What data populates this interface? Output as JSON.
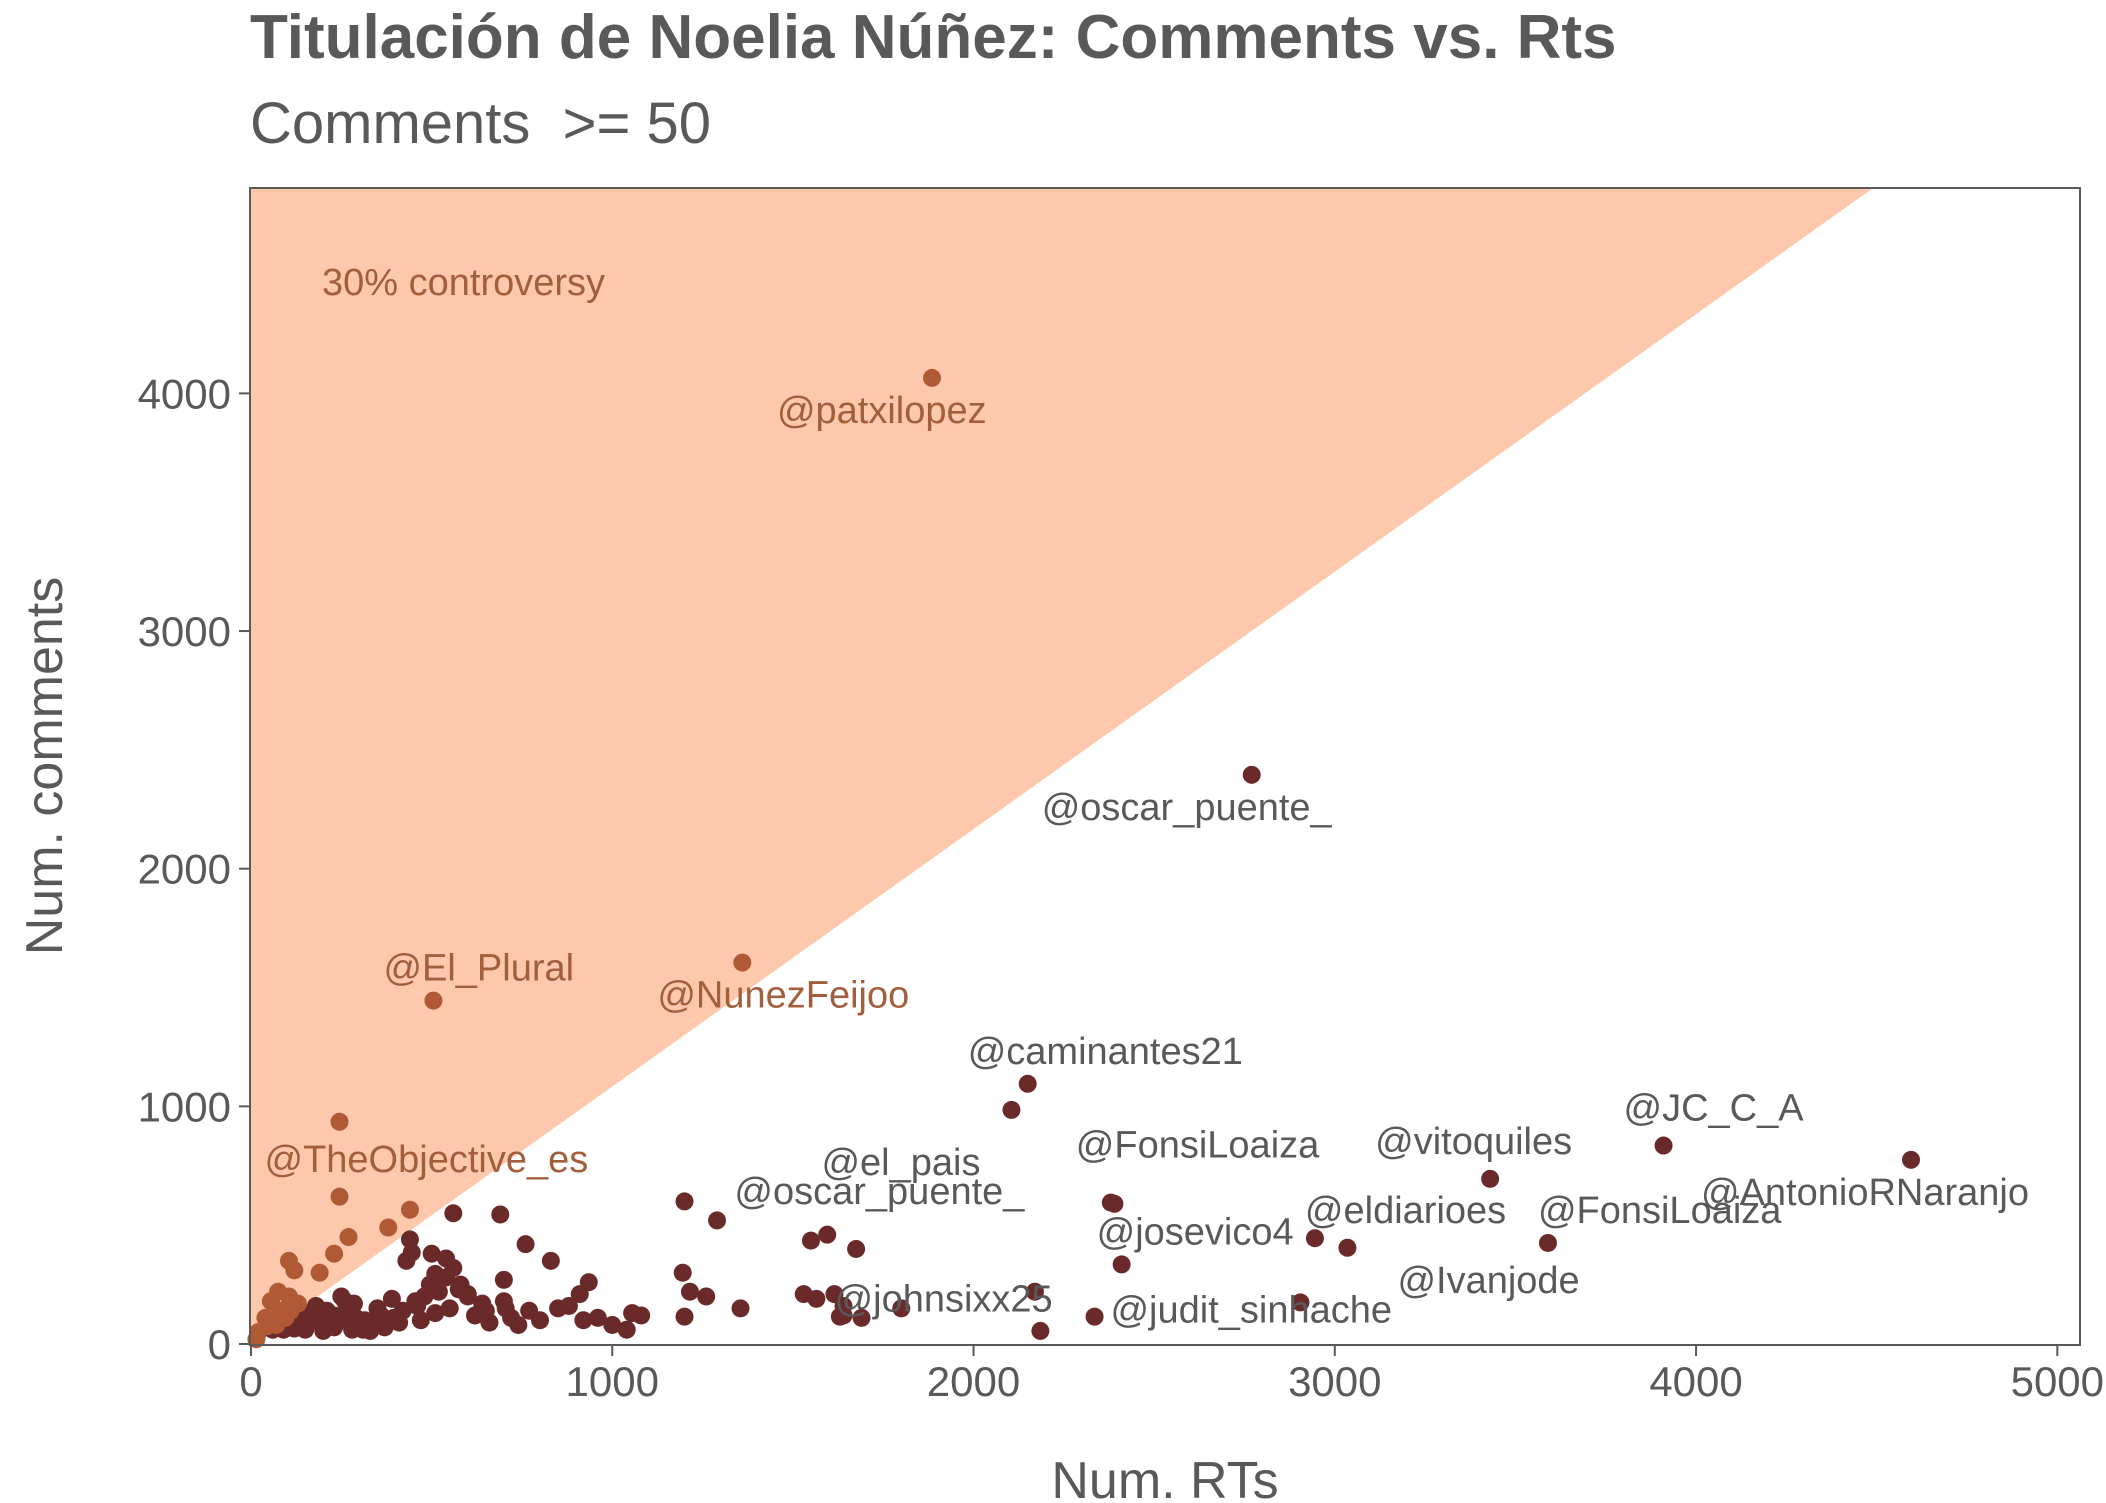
{
  "colors": {
    "band": "#fdc8ab",
    "point_controversial": "#b05a35",
    "point_normal": "#6b2a2a",
    "label_controversial": "#a35f3c",
    "label_normal": "#595959",
    "band_text": "#a35f3c"
  },
  "chart_data": {
    "type": "scatter",
    "title": "Titulación de Noelia Núñez: Comments vs. Rts",
    "subtitle": "Comments  >= 50",
    "xlabel": "Num. RTs",
    "ylabel": "Num. comments",
    "xlim": [
      0,
      5060
    ],
    "ylim": [
      0,
      4860
    ],
    "xticks": [
      0,
      1000,
      2000,
      3000,
      4000,
      5000
    ],
    "yticks": [
      0,
      1000,
      2000,
      3000,
      4000
    ],
    "grid": false,
    "band": {
      "label": "30% controversy",
      "slope": 1.0833
    },
    "labeled_points": [
      {
        "label": "@patxilopez",
        "x": 1885,
        "y": 4065,
        "controversial": true
      },
      {
        "label": "@oscar_puente_",
        "x": 2770,
        "y": 2395,
        "controversial": false
      },
      {
        "label": "@El_Plural",
        "x": 505,
        "y": 1445,
        "controversial": true
      },
      {
        "label": "@NunezFeijoo",
        "x": 1360,
        "y": 1605,
        "controversial": true
      },
      {
        "label": "@caminantes21",
        "x": 2150,
        "y": 1095,
        "controversial": false
      },
      {
        "label": "@el_pais",
        "x": 2105,
        "y": 985,
        "controversial": false
      },
      {
        "label": "@TheObjective_es",
        "x": 245,
        "y": 935,
        "controversial": true
      },
      {
        "label": "@JC_C_A",
        "x": 3910,
        "y": 835,
        "controversial": false
      },
      {
        "label": "@AntonioRNaranjo",
        "x": 4595,
        "y": 775,
        "controversial": false
      },
      {
        "label": "@vitoquiles",
        "x": 3430,
        "y": 695,
        "controversial": false
      },
      {
        "label": "@FonsiLoaiza",
        "x": 2380,
        "y": 595,
        "controversial": false
      },
      {
        "label": "@oscar_puente_",
        "x": 2390,
        "y": 590,
        "controversial": false
      },
      {
        "label": "@eldiarioes",
        "x": 2945,
        "y": 445,
        "controversial": false
      },
      {
        "label": "@FonsiLoaiza",
        "x": 3590,
        "y": 425,
        "controversial": false
      },
      {
        "label": "@Ivanjode",
        "x": 3035,
        "y": 405,
        "controversial": false
      },
      {
        "label": "@josevico4",
        "x": 2410,
        "y": 335,
        "controversial": false
      },
      {
        "label": "@judit_sinhache",
        "x": 2905,
        "y": 175,
        "controversial": false
      },
      {
        "label": "@johnsixx25",
        "x": 2335,
        "y": 115,
        "controversial": false
      }
    ],
    "points": [
      [
        245,
        620
      ],
      [
        440,
        565
      ],
      [
        380,
        490
      ],
      [
        270,
        450
      ],
      [
        440,
        440
      ],
      [
        230,
        380
      ],
      [
        105,
        350
      ],
      [
        120,
        310
      ],
      [
        190,
        300
      ],
      [
        75,
        220
      ],
      [
        55,
        180
      ],
      [
        105,
        200
      ],
      [
        140,
        120
      ],
      [
        170,
        100
      ],
      [
        210,
        140
      ],
      [
        260,
        180
      ],
      [
        60,
        90
      ],
      [
        90,
        60
      ],
      [
        130,
        80
      ],
      [
        20,
        50
      ],
      [
        40,
        110
      ],
      [
        150,
        60
      ],
      [
        230,
        70
      ],
      [
        560,
        550
      ],
      [
        690,
        545
      ],
      [
        1200,
        600
      ],
      [
        1290,
        520
      ],
      [
        1550,
        435
      ],
      [
        1595,
        460
      ],
      [
        1675,
        400
      ],
      [
        445,
        385
      ],
      [
        500,
        380
      ],
      [
        540,
        360
      ],
      [
        430,
        350
      ],
      [
        760,
        420
      ],
      [
        830,
        350
      ],
      [
        935,
        260
      ],
      [
        910,
        210
      ],
      [
        1195,
        300
      ],
      [
        1215,
        220
      ],
      [
        1260,
        200
      ],
      [
        1355,
        150
      ],
      [
        1530,
        210
      ],
      [
        1565,
        190
      ],
      [
        1615,
        210
      ],
      [
        1640,
        160
      ],
      [
        1640,
        120
      ],
      [
        1690,
        110
      ],
      [
        1800,
        150
      ],
      [
        2170,
        220
      ],
      [
        2185,
        55
      ],
      [
        1040,
        60
      ],
      [
        1055,
        130
      ],
      [
        1080,
        120
      ],
      [
        920,
        100
      ],
      [
        850,
        150
      ],
      [
        770,
        140
      ],
      [
        700,
        180
      ],
      [
        720,
        110
      ],
      [
        640,
        170
      ],
      [
        600,
        210
      ],
      [
        580,
        250
      ],
      [
        540,
        280
      ],
      [
        520,
        220
      ],
      [
        480,
        200
      ],
      [
        460,
        160
      ],
      [
        420,
        140
      ],
      [
        390,
        190
      ],
      [
        360,
        120
      ],
      [
        340,
        80
      ],
      [
        310,
        60
      ],
      [
        290,
        110
      ],
      [
        270,
        150
      ],
      [
        250,
        200
      ],
      [
        230,
        120
      ],
      [
        210,
        90
      ],
      [
        180,
        160
      ],
      [
        160,
        130
      ],
      [
        130,
        170
      ],
      [
        100,
        100
      ],
      [
        80,
        140
      ],
      [
        60,
        60
      ],
      [
        330,
        55
      ],
      [
        370,
        70
      ],
      [
        410,
        90
      ],
      [
        470,
        100
      ],
      [
        510,
        130
      ],
      [
        550,
        150
      ],
      [
        620,
        120
      ],
      [
        660,
        90
      ],
      [
        740,
        80
      ],
      [
        800,
        100
      ],
      [
        880,
        160
      ],
      [
        960,
        110
      ],
      [
        1000,
        80
      ],
      [
        700,
        270
      ],
      [
        560,
        320
      ],
      [
        510,
        295
      ],
      [
        600,
        200
      ],
      [
        300,
        70
      ],
      [
        280,
        60
      ],
      [
        200,
        55
      ],
      [
        120,
        65
      ],
      [
        45,
        75
      ],
      [
        15,
        20
      ],
      [
        240,
        95
      ],
      [
        265,
        140
      ],
      [
        285,
        170
      ],
      [
        315,
        100
      ],
      [
        350,
        150
      ],
      [
        395,
        110
      ],
      [
        455,
        180
      ],
      [
        495,
        250
      ],
      [
        575,
        230
      ],
      [
        650,
        140
      ],
      [
        705,
        150
      ],
      [
        300,
        80
      ],
      [
        280,
        100
      ],
      [
        150,
        90
      ],
      [
        110,
        140
      ],
      [
        95,
        110
      ],
      [
        70,
        80
      ],
      [
        1200,
        115
      ],
      [
        1630,
        115
      ]
    ]
  }
}
